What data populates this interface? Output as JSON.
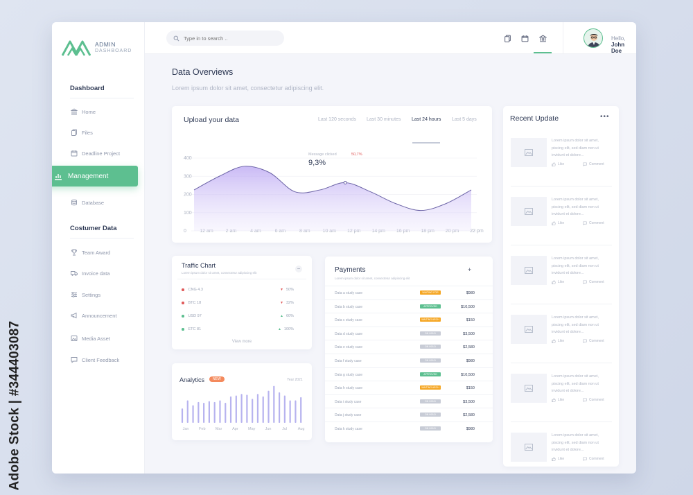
{
  "watermark": {
    "side_text": "Adobe Stock | #344403087"
  },
  "logo": {
    "line1": "ADMIN",
    "line2": "DASHBOARD"
  },
  "sidebar": {
    "section1": "Dashboard",
    "items1": [
      {
        "label": "Home",
        "icon": "bank-icon"
      },
      {
        "label": "Files",
        "icon": "files-icon"
      },
      {
        "label": "Deadline Project",
        "icon": "calendar-icon"
      }
    ],
    "active": {
      "label": "Management",
      "icon": "chart-icon"
    },
    "items1b": [
      {
        "label": "Database",
        "icon": "database-icon"
      }
    ],
    "section2": "Costumer Data",
    "items2": [
      {
        "label": "Team Award",
        "icon": "trophy-icon"
      },
      {
        "label": "Invoice data",
        "icon": "truck-icon"
      },
      {
        "label": "Settings",
        "icon": "sliders-icon"
      },
      {
        "label": "Announcement",
        "icon": "megaphone-icon"
      },
      {
        "label": "Media Asset",
        "icon": "image-icon"
      },
      {
        "label": "Client Feedback",
        "icon": "chat-icon"
      }
    ]
  },
  "header": {
    "search_placeholder": "Type in to search ..",
    "greeting": "Hello,",
    "user": "John Doe"
  },
  "main": {
    "title": "Data Overviews",
    "subtitle": "Lorem ipsum dolor sit amet, consectetur adipiscing elit."
  },
  "upload": {
    "title": "Upload your data",
    "filters": [
      "Last 120 seconds",
      "Last 30 minutes",
      "Last 24 hours",
      "Last 5 days"
    ],
    "active_filter": "Last 24 hours",
    "tooltip_label": "Message clicked",
    "tooltip_value": "9,3%",
    "tooltip_change": "50,7%",
    "accent": "#b8a3f2"
  },
  "chart_data": {
    "type": "area",
    "x": [
      "12 am",
      "2 am",
      "4 am",
      "6 am",
      "8 am",
      "10 am",
      "12 pm",
      "14 pm",
      "16 pm",
      "18 pm",
      "20 pm",
      "22 pm"
    ],
    "y_ticks": [
      "0",
      "100",
      "200",
      "300",
      "400"
    ],
    "ylim": [
      0,
      400
    ],
    "series": [
      {
        "values": [
          225,
          300,
          355,
          320,
          215,
          225,
          265,
          215,
          150,
          112,
          150,
          225
        ]
      }
    ]
  },
  "traffic": {
    "title": "Traffic Chart",
    "subtitle": "Lorem ipsum dolor sit amet, consectetur adipiscing elit",
    "rows": [
      {
        "label": "CNG 4.3",
        "value": "50%",
        "color": "#e05a5a",
        "trend": "down"
      },
      {
        "label": "BTC 18",
        "value": "32%",
        "color": "#e05a5a",
        "trend": "down"
      },
      {
        "label": "USD 97",
        "value": "60%",
        "color": "#5dbf90",
        "trend": "up"
      },
      {
        "label": "ETC 81",
        "value": "100%",
        "color": "#5dbf90",
        "trend": "up"
      }
    ],
    "view_more": "View more"
  },
  "analytics": {
    "title": "Analytics",
    "badge": "NEW",
    "year": "Year 2021",
    "months": [
      "Jan",
      "Feb",
      "Mar",
      "Apr",
      "May",
      "Jun",
      "Jul",
      "Aug"
    ],
    "bars": [
      18,
      28,
      22,
      26,
      25,
      27,
      26,
      28,
      25,
      33,
      34,
      36,
      35,
      30,
      36,
      33,
      40,
      46,
      38,
      34,
      28,
      28,
      32
    ]
  },
  "payments": {
    "title": "Payments",
    "subtitle": "Lorem ipsum dolor sit amet, consectetur adipiscing elit",
    "rows": [
      {
        "name": "Data a study case",
        "status": "WAITING FOR",
        "color": "#f5a623",
        "amount": "$980"
      },
      {
        "name": "Data b study case",
        "status": "APPROVED",
        "color": "#5dbf90",
        "amount": "$10,500"
      },
      {
        "name": "Data c study case",
        "status": "WAITING ARCH",
        "color": "#f5a623",
        "amount": "$150"
      },
      {
        "name": "Data d study case",
        "status": "ON HOLD",
        "color": "#c8ccd6",
        "amount": "$3,500"
      },
      {
        "name": "Data e study case",
        "status": "ON HOLD",
        "color": "#c8ccd6",
        "amount": "$2,580"
      },
      {
        "name": "Data f study case",
        "status": "ON HOLD",
        "color": "#c8ccd6",
        "amount": "$980"
      },
      {
        "name": "Data g study case",
        "status": "APPROVED",
        "color": "#5dbf90",
        "amount": "$10,500"
      },
      {
        "name": "Data h study case",
        "status": "WAITING ARCH",
        "color": "#f5a623",
        "amount": "$150"
      },
      {
        "name": "Data i study case",
        "status": "ON HOLD",
        "color": "#c8ccd6",
        "amount": "$3,500"
      },
      {
        "name": "Data j study case",
        "status": "ON HOLD",
        "color": "#c8ccd6",
        "amount": "$2,580"
      },
      {
        "name": "Data k study case",
        "status": "ON HOLD",
        "color": "#c8ccd6",
        "amount": "$980"
      }
    ]
  },
  "recent": {
    "title": "Recent Update",
    "items": [
      {
        "text": "Lorem ipsum dolor sit amet, piscing elit, sed diam non ut invidunt et dolore...",
        "like": "Like",
        "comment": "Comment"
      },
      {
        "text": "Lorem ipsum dolor sit amet, piscing elit, sed diam non ut invidunt et dolore...",
        "like": "Like",
        "comment": "Comment"
      },
      {
        "text": "Lorem ipsum dolor sit amet, piscing elit, sed diam non ut invidunt et dolore...",
        "like": "Like",
        "comment": "Comment"
      },
      {
        "text": "Lorem ipsum dolor sit amet, piscing elit, sed diam non ut invidunt et dolore...",
        "like": "Like",
        "comment": "Comment"
      },
      {
        "text": "Lorem ipsum dolor sit amet, piscing elit, sed diam non ut invidunt et dolore...",
        "like": "Like",
        "comment": "Comment"
      },
      {
        "text": "Lorem ipsum dolor sit amet, piscing elit, sed diam non ut invidunt et dolore...",
        "like": "Like",
        "comment": "Comment"
      }
    ]
  },
  "colors": {
    "accent_green": "#5dbf90",
    "accent_purple": "#b8a3f2",
    "analytics_bar": "#b7b3ef"
  }
}
